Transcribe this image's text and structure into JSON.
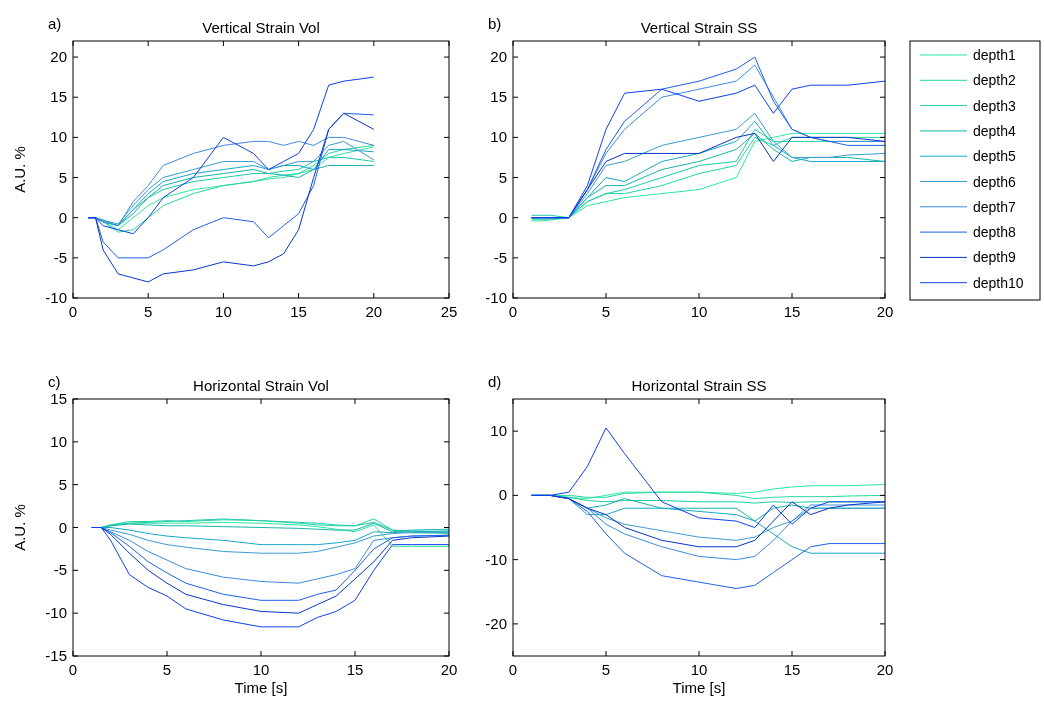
{
  "chart_data": [
    {
      "type": "line",
      "title": "Vertical Strain Vol",
      "ylabel": "A.U. %",
      "annotations": [
        "a)"
      ],
      "x": [
        1,
        1.5,
        2,
        3,
        4,
        5,
        6,
        8,
        10,
        12,
        13,
        14,
        15,
        16,
        17,
        18,
        20
      ],
      "xlim": [
        0,
        25
      ],
      "xticks": [
        0,
        5,
        10,
        15,
        20,
        25
      ],
      "ylim": [
        -10,
        22
      ],
      "yticks": [
        -10,
        -5,
        0,
        5,
        10,
        15,
        20
      ],
      "series": [
        {
          "color": "#2ee8a0",
          "values": [
            0,
            0,
            -0.5,
            -1.5,
            0,
            1.5,
            2.5,
            3.5,
            4,
            4.5,
            4.8,
            5,
            5.5,
            6,
            7.5,
            8,
            8.8
          ]
        },
        {
          "color": "#26d8a0",
          "values": [
            0,
            0,
            -0.5,
            -1.8,
            -1.5,
            0,
            1.5,
            3,
            4,
            4.5,
            5,
            5.3,
            5.5,
            6.5,
            8,
            8.5,
            9
          ]
        },
        {
          "color": "#1ecca8",
          "values": [
            0,
            0,
            -0.3,
            -1,
            1,
            2.5,
            3.5,
            4.5,
            5,
            5.5,
            5.5,
            5.8,
            6,
            7,
            7.5,
            7.5,
            7
          ]
        },
        {
          "color": "#18b4a8",
          "values": [
            0,
            0,
            -0.5,
            -1,
            0.5,
            2.5,
            4,
            5,
            5.5,
            6,
            5.5,
            5.3,
            5,
            6,
            6.5,
            6.5,
            6.5
          ]
        },
        {
          "color": "#18a8c8",
          "values": [
            0,
            0,
            -0.5,
            -1,
            1,
            3,
            4.5,
            5.5,
            6,
            6.5,
            6,
            6.5,
            6.5,
            6,
            8.5,
            8.5,
            8.2
          ]
        },
        {
          "color": "#3c9cd0",
          "values": [
            0,
            0,
            -0.3,
            -0.8,
            1.5,
            3.5,
            5,
            6,
            7,
            7,
            6,
            6.5,
            7,
            7,
            9,
            9.5,
            7.2
          ]
        },
        {
          "color": "#3c8ce0",
          "values": [
            0,
            0,
            -0.5,
            -1,
            2,
            4,
            6.5,
            8,
            9,
            9.5,
            9.5,
            9,
            9.5,
            9,
            10,
            10,
            9
          ]
        },
        {
          "color": "#2060e8",
          "values": [
            0,
            0,
            -3,
            -5,
            -5,
            -5,
            -4,
            -1.5,
            0,
            -0.5,
            -2.5,
            -1,
            0.5,
            4,
            11,
            13,
            12.8
          ]
        },
        {
          "color": "#0a36c8",
          "values": [
            0,
            0,
            -4,
            -7,
            -7.5,
            -8,
            -7,
            -6.5,
            -5.5,
            -6,
            -5.5,
            -4.5,
            -1.5,
            5,
            11,
            13,
            11
          ]
        },
        {
          "color": "#1040f0",
          "values": [
            0,
            0,
            -1,
            -1.5,
            -2,
            0,
            2.5,
            5,
            10,
            8,
            6,
            7,
            8,
            11,
            16.5,
            17,
            17.5
          ]
        }
      ]
    },
    {
      "type": "line",
      "title": "Vertical Strain SS",
      "annotations": [
        "b)"
      ],
      "legend": "right",
      "x": [
        1,
        1.5,
        2,
        3,
        4,
        5,
        6,
        8,
        10,
        12,
        13,
        14,
        15,
        16,
        17,
        18,
        20
      ],
      "xlim": [
        0,
        20
      ],
      "xticks": [
        0,
        5,
        10,
        15,
        20
      ],
      "ylim": [
        -10,
        22
      ],
      "yticks": [
        -10,
        -5,
        0,
        5,
        10,
        15,
        20
      ],
      "series": [
        {
          "name": "depth1",
          "color": "#2ee8a0",
          "values": [
            -0.4,
            -0.4,
            -0.3,
            0,
            1.5,
            2,
            2.5,
            3,
            3.5,
            5,
            9.5,
            10,
            10.5,
            10.5,
            10.5,
            10.5,
            10.5
          ]
        },
        {
          "name": "depth2",
          "color": "#26d8a0",
          "values": [
            -0.2,
            -0.2,
            -0.2,
            0,
            2,
            3,
            3,
            4,
            5.5,
            6.5,
            10,
            9,
            10,
            10,
            10,
            10,
            10
          ]
        },
        {
          "name": "depth3",
          "color": "#1ecca8",
          "values": [
            0.3,
            0.3,
            0.3,
            0,
            2,
            3,
            3.5,
            5,
            6.5,
            7,
            11,
            9.5,
            9.5,
            9.5,
            9.5,
            9.5,
            9.5
          ]
        },
        {
          "name": "depth4",
          "color": "#18b4a8",
          "values": [
            0,
            0,
            0,
            0,
            2.5,
            4,
            4,
            6,
            7,
            8.5,
            10.5,
            8.5,
            7,
            7.5,
            7.5,
            7.5,
            7
          ]
        },
        {
          "name": "depth5",
          "color": "#18a8c8",
          "values": [
            0,
            0,
            0,
            0,
            2.5,
            5,
            4.5,
            7,
            8,
            9.5,
            12,
            9,
            7.5,
            7,
            7,
            7,
            7
          ]
        },
        {
          "name": "depth6",
          "color": "#3c9cd0",
          "values": [
            0,
            0,
            0,
            0,
            3,
            6.5,
            7,
            9,
            10,
            11,
            13,
            9.5,
            7.5,
            7.5,
            7.5,
            7.8,
            8
          ]
        },
        {
          "name": "depth7",
          "color": "#3c8ce0",
          "values": [
            0,
            0,
            0,
            0,
            3.5,
            8,
            11,
            15,
            16,
            17,
            19,
            15,
            11,
            10,
            9.5,
            9.5,
            9.5
          ]
        },
        {
          "name": "depth8",
          "color": "#2060e8",
          "values": [
            0,
            0,
            0,
            0,
            3.5,
            8.5,
            12,
            16,
            17,
            18.5,
            20,
            14.5,
            11,
            10,
            9.5,
            9,
            9
          ]
        },
        {
          "name": "depth9",
          "color": "#0a36c8",
          "values": [
            0,
            0,
            0,
            0,
            3.5,
            7,
            8,
            8,
            8,
            10,
            10.5,
            7,
            10,
            10,
            10,
            10,
            9.5
          ]
        },
        {
          "name": "depth10",
          "color": "#1040f0",
          "values": [
            0,
            0,
            0,
            0,
            4,
            11,
            15.5,
            16,
            14.5,
            15.5,
            16.5,
            13,
            16,
            16.5,
            16.5,
            16.5,
            17
          ]
        }
      ]
    },
    {
      "type": "line",
      "title": "Horizontal Strain Vol",
      "xlabel": "Time [s]",
      "ylabel": "A.U. %",
      "annotations": [
        "c)"
      ],
      "x": [
        1,
        1.5,
        2,
        3,
        4,
        5,
        6,
        8,
        10,
        12,
        13,
        14,
        15,
        16,
        17,
        18,
        20
      ],
      "xlim": [
        0,
        20
      ],
      "xticks": [
        0,
        5,
        10,
        15,
        20
      ],
      "ylim": [
        -15,
        15
      ],
      "yticks": [
        -15,
        -10,
        -5,
        0,
        5,
        10,
        15
      ],
      "series": [
        {
          "color": "#2ee8a0",
          "values": [
            0,
            0,
            0.3,
            0.5,
            0.5,
            0.5,
            0.5,
            0.6,
            0.5,
            0.3,
            0.1,
            -0.2,
            -0.5,
            0.3,
            -2.2,
            -2.2,
            -2.2
          ]
        },
        {
          "color": "#26d8a0",
          "values": [
            0,
            0,
            0.3,
            0.7,
            0.7,
            0.8,
            0.7,
            0.9,
            0.8,
            0.5,
            0.3,
            0.2,
            0.2,
            1,
            -0.3,
            -0.6,
            -0.7
          ]
        },
        {
          "color": "#1ecca8",
          "values": [
            0,
            0,
            0.2,
            0.5,
            0.6,
            0.7,
            0.8,
            1,
            0.8,
            0.6,
            0.5,
            0.3,
            0.2,
            0.6,
            -0.3,
            -0.4,
            -0.5
          ]
        },
        {
          "color": "#18b4a8",
          "values": [
            0,
            0,
            0.2,
            0.4,
            0.3,
            0.2,
            0.2,
            0.1,
            0,
            -0.1,
            -0.2,
            -0.3,
            -0.3,
            0.5,
            -0.5,
            -0.3,
            -0.2
          ]
        },
        {
          "color": "#18a8c8",
          "values": [
            0,
            0,
            0,
            -0.3,
            -0.7,
            -1,
            -1.2,
            -1.5,
            -2,
            -2,
            -2,
            -1.8,
            -1.5,
            -0.5,
            -0.6,
            -0.5,
            -0.4
          ]
        },
        {
          "color": "#3c9cd0",
          "values": [
            0,
            0,
            -0.3,
            -0.8,
            -1.5,
            -2,
            -2.3,
            -2.8,
            -3,
            -3,
            -2.8,
            -2.3,
            -1.8,
            -1,
            -0.7,
            -0.6,
            -0.6
          ]
        },
        {
          "color": "#3c8ce0",
          "values": [
            0,
            0,
            -0.5,
            -1.5,
            -2.8,
            -3.8,
            -4.8,
            -5.8,
            -6.3,
            -6.5,
            -6,
            -5.5,
            -4.8,
            -1.5,
            -1.2,
            -1,
            -0.9
          ]
        },
        {
          "color": "#2060e8",
          "values": [
            0,
            0,
            -0.6,
            -2.2,
            -4,
            -5.3,
            -6.5,
            -7.8,
            -8.5,
            -8.5,
            -7.8,
            -7.3,
            -5,
            -2.5,
            -1.2,
            -1,
            -0.9
          ]
        },
        {
          "color": "#0a36c8",
          "values": [
            0,
            0,
            -0.8,
            -3,
            -5,
            -6.5,
            -7.8,
            -9,
            -9.8,
            -10,
            -9,
            -8,
            -6,
            -4,
            -1.5,
            -1.2,
            -1
          ]
        },
        {
          "color": "#1040f0",
          "values": [
            0,
            0,
            -1.5,
            -5.5,
            -7,
            -8,
            -9.5,
            -10.8,
            -11.6,
            -11.6,
            -10.5,
            -9.8,
            -8.5,
            -5,
            -2,
            -2,
            -2
          ]
        }
      ]
    },
    {
      "type": "line",
      "title": "Horizontal Strain SS",
      "xlabel": "Time [s]",
      "annotations": [
        "d)"
      ],
      "x": [
        1,
        1.5,
        2,
        3,
        4,
        5,
        6,
        8,
        10,
        12,
        13,
        14,
        15,
        16,
        17,
        18,
        20
      ],
      "xlim": [
        0,
        20
      ],
      "xticks": [
        0,
        5,
        10,
        15,
        20
      ],
      "ylim": [
        -25,
        15
      ],
      "yticks": [
        -20,
        -10,
        0,
        10
      ],
      "series": [
        {
          "color": "#2ee8a0",
          "values": [
            0,
            0,
            0,
            -0.3,
            -0.5,
            0,
            0.5,
            0.5,
            0.5,
            0.3,
            0.5,
            1,
            1.3,
            1.5,
            1.5,
            1.5,
            1.7
          ]
        },
        {
          "color": "#26d8a0",
          "values": [
            0,
            0,
            0,
            0,
            -0.3,
            -0.3,
            0.3,
            0.5,
            0.5,
            0,
            -0.5,
            -0.3,
            -0.2,
            -0.2,
            -0.2,
            -0.1,
            0
          ]
        },
        {
          "color": "#1ecca8",
          "values": [
            0,
            0,
            0,
            -0.3,
            -0.8,
            -1,
            -0.8,
            -0.8,
            -1,
            -1,
            -1.2,
            -1,
            -1.1,
            -1,
            -1,
            -1,
            -1
          ]
        },
        {
          "color": "#18b4a8",
          "values": [
            0,
            0,
            0,
            -0.5,
            -2,
            -1.5,
            -0.5,
            -2,
            -2,
            -2,
            -4,
            -2,
            -1.5,
            -2,
            -2,
            -2,
            -2
          ]
        },
        {
          "color": "#18a8c8",
          "values": [
            0,
            0,
            0,
            -0.5,
            -3,
            -3,
            -2,
            -2,
            -2.5,
            -3,
            -4,
            -6,
            -8,
            -9,
            -9,
            -9,
            -9
          ]
        },
        {
          "color": "#3c9cd0",
          "values": [
            0,
            0,
            0,
            -0.5,
            -2,
            -3.5,
            -4.5,
            -5.5,
            -6.5,
            -7,
            -6.5,
            -5,
            -4,
            -2,
            -2,
            -2,
            -2
          ]
        },
        {
          "color": "#3c8ce0",
          "values": [
            0,
            0,
            0,
            -0.5,
            -2,
            -4.5,
            -6,
            -8,
            -9.5,
            -10,
            -9.5,
            -7,
            -4,
            -1.5,
            -1.5,
            -1.5,
            -1.5
          ]
        },
        {
          "color": "#2060e8",
          "values": [
            0,
            0,
            0,
            -0.5,
            -2.5,
            -6,
            -9,
            -12.5,
            -13.5,
            -14.5,
            -14,
            -12,
            -10,
            -8,
            -7.5,
            -7.5,
            -7.5
          ]
        },
        {
          "color": "#0a36c8",
          "values": [
            0,
            0,
            0,
            -0.5,
            -2,
            -3,
            -5,
            -7,
            -8,
            -8,
            -7,
            -4,
            -1,
            -3,
            -2,
            -1.5,
            -1
          ]
        },
        {
          "color": "#1040f0",
          "values": [
            0,
            0,
            0,
            0.5,
            4.5,
            10.5,
            6.5,
            -1,
            -3.5,
            -4,
            -5,
            -1.5,
            -4.5,
            -2,
            -1,
            -1,
            -1
          ]
        }
      ]
    }
  ]
}
